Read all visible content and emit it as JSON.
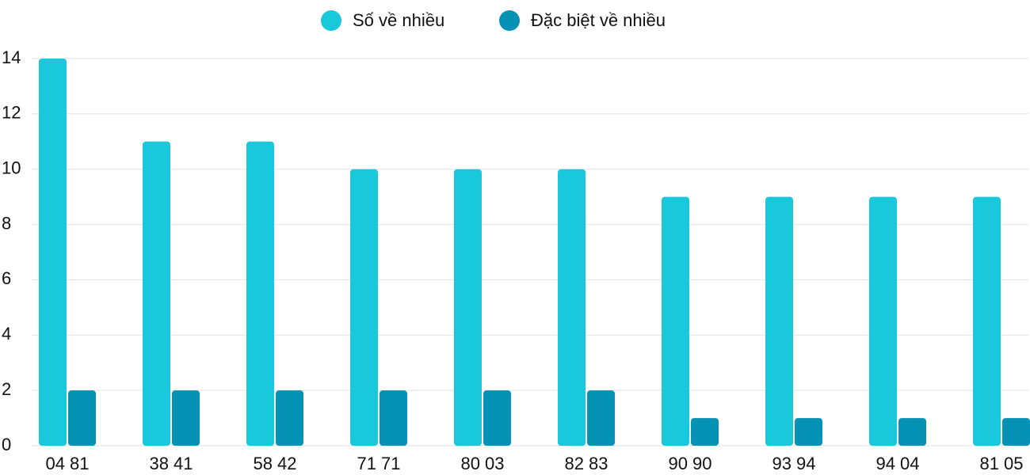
{
  "chart_data": {
    "type": "bar",
    "categories": [
      "04 81",
      "38 41",
      "58 42",
      "71 71",
      "80 03",
      "82 83",
      "90 90",
      "93 94",
      "94 04",
      "81 05"
    ],
    "series": [
      {
        "name": "Số về nhiều",
        "color": "#1ac8db",
        "values": [
          14,
          11,
          11,
          10,
          10,
          10,
          9,
          9,
          9,
          9
        ]
      },
      {
        "name": "Đặc biệt về nhiều",
        "color": "#0692b5",
        "values": [
          2,
          2,
          2,
          2,
          2,
          2,
          1,
          1,
          1,
          1
        ]
      }
    ],
    "ylim": [
      0,
      14
    ],
    "yticks": [
      0,
      2,
      4,
      6,
      8,
      10,
      12,
      14
    ],
    "grid": true,
    "legend": "top"
  }
}
